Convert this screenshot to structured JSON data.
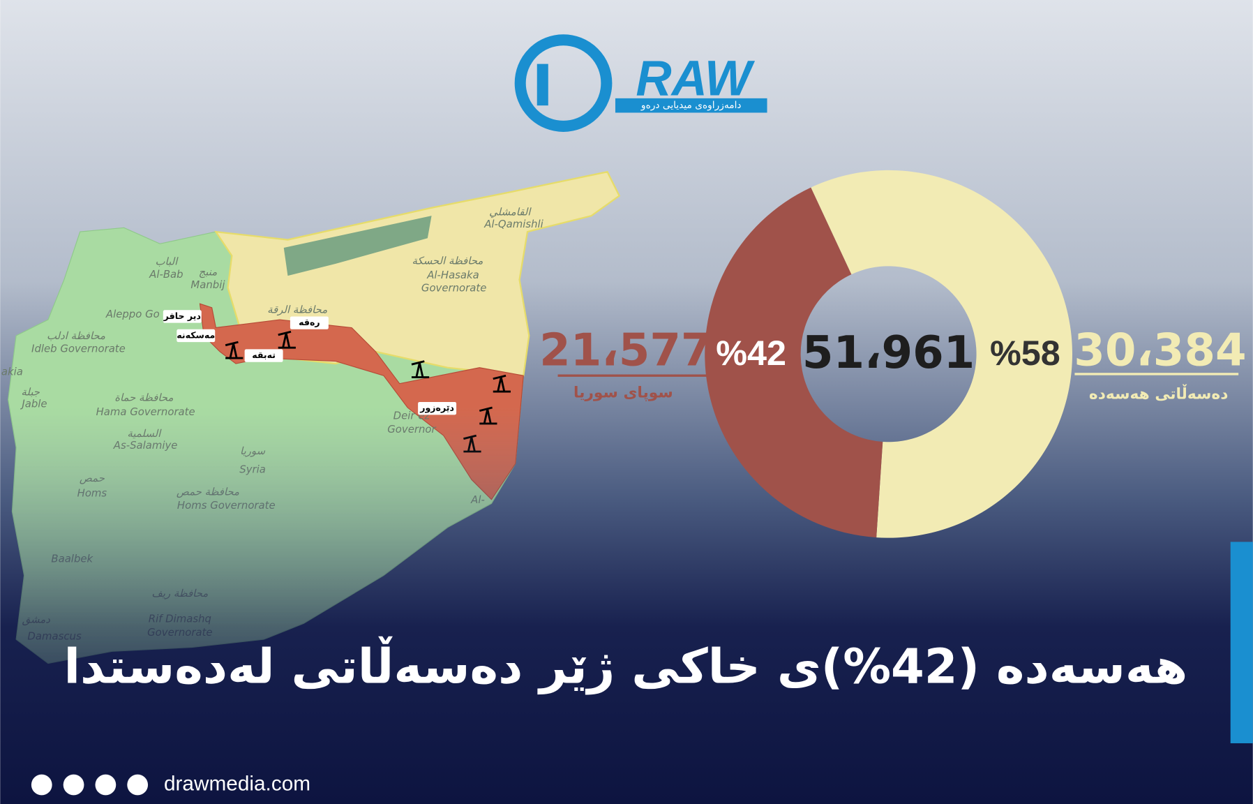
{
  "logo": {
    "letters": "RAW",
    "tagline": "دامەزراوەی میدیایی درەو"
  },
  "map": {
    "labels": [
      "القامشلي",
      "Al-Qamishli",
      "محافظة الحسكة",
      "Al-Hasaka",
      "Governorate",
      "الباب",
      "Al-Bab",
      "منبج",
      "Manbij",
      "محافظة الرقة",
      "Aleppo Go",
      "محافظة ادلب",
      "Idleb Governorate",
      "محافظة حماة",
      "Hama Governorate",
      "السلمية",
      "As-Salamiye",
      "سوريا",
      "Syria",
      "حمص",
      "Homs",
      "محافظة حمص",
      "Homs Governorate",
      "Deir ez",
      "Governor",
      "محافظة ريف",
      "Rif Dimashq",
      "Governorate",
      "دمشق",
      "Damascus",
      "Baalbek",
      "جبلة",
      "Jable",
      "akia",
      "Al-"
    ],
    "places": [
      "دیر حافر",
      "مەسکەنە",
      "تەبقە",
      "رەقە",
      "دێرەزور"
    ]
  },
  "chart_data": {
    "type": "donut",
    "categories": [
      "دەسەڵاتی هەسەدە",
      "سوپای سوریا"
    ],
    "values": [
      58,
      42
    ],
    "value_labels": [
      "%58",
      "%42"
    ],
    "colors": [
      "#f2ebb4",
      "#a0524a"
    ],
    "totals": [
      "30،384",
      "21،577"
    ],
    "total": "51،961"
  },
  "title": "هەسەدە (42%)ی خاکی ژێر دەسەڵاتی لەدەستدا",
  "footer": {
    "website": "drawmedia.com"
  }
}
